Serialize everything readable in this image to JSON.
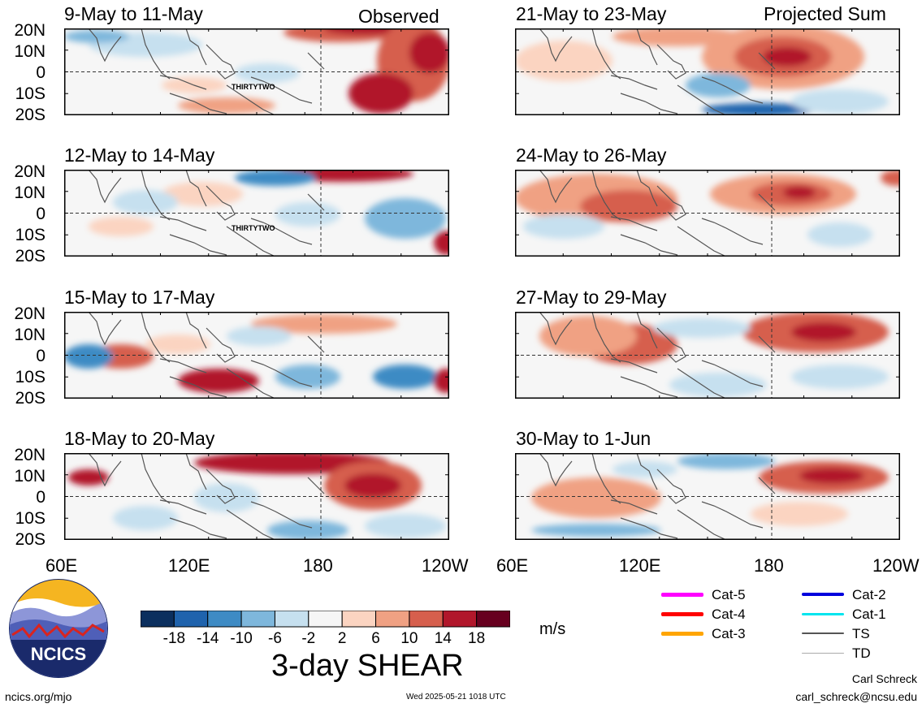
{
  "header": {
    "observed_label": "Observed",
    "projected_label": "Projected Sum"
  },
  "panels": {
    "left": [
      {
        "title": "9-May to 11-May",
        "storm_label": "THIRTYTWO"
      },
      {
        "title": "12-May to 14-May",
        "storm_label": "THIRTYTWO"
      },
      {
        "title": "15-May to 17-May"
      },
      {
        "title": "18-May to 20-May"
      }
    ],
    "right": [
      {
        "title": "21-May to 23-May"
      },
      {
        "title": "24-May to 26-May"
      },
      {
        "title": "27-May to 29-May"
      },
      {
        "title": "30-May to 1-Jun"
      }
    ]
  },
  "axes": {
    "lat_labels": [
      "20N",
      "10N",
      "0",
      "10S",
      "20S"
    ],
    "lon_labels": [
      "60E",
      "120E",
      "180",
      "120W"
    ],
    "lon_labels_right": [
      "60E",
      "120E",
      "180",
      "120W"
    ]
  },
  "colorbar": {
    "ticks": [
      "-18",
      "-14",
      "-10",
      "-6",
      "-2",
      "2",
      "6",
      "10",
      "14",
      "18"
    ],
    "colors": [
      "#0b2f5e",
      "#1f63ad",
      "#3e8bc4",
      "#7eb7dc",
      "#c6e0ef",
      "#f6f6f6",
      "#fbd4c1",
      "#f0a183",
      "#d65f4d",
      "#b1172b",
      "#67001f"
    ],
    "units": "m/s",
    "title": "3-day SHEAR"
  },
  "track_legend": [
    {
      "label": "Cat-5",
      "color": "#ff00ff",
      "width": 5
    },
    {
      "label": "Cat-4",
      "color": "#ff0000",
      "width": 5
    },
    {
      "label": "Cat-3",
      "color": "#ffa500",
      "width": 5
    },
    {
      "label": "Cat-2",
      "color": "#0000dd",
      "width": 4
    },
    {
      "label": "Cat-1",
      "color": "#00e5ee",
      "width": 3
    },
    {
      "label": "TS",
      "color": "#555555",
      "width": 2
    },
    {
      "label": "TD",
      "color": "#aaaaaa",
      "width": 1
    }
  ],
  "logo": {
    "text": "NCICS"
  },
  "footer": {
    "url": "ncics.org/mjo",
    "timestamp": "Wed 2025-05-21 1018 UTC",
    "author": "Carl Schreck",
    "email": "carl_schreck@ncsu.edu"
  }
}
